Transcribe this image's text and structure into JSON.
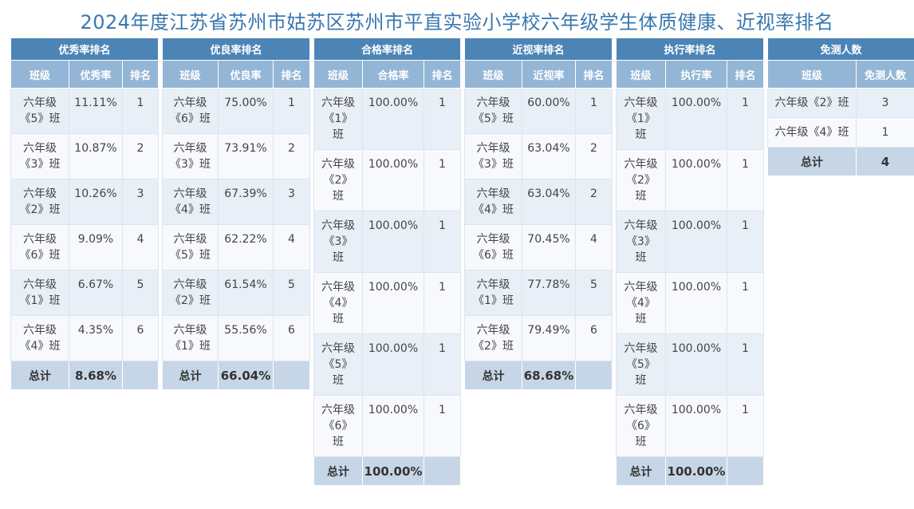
{
  "title": "2024年度江苏省苏州市姑苏区苏州市平直实验小学校六年级学生体质健康、近视率排名",
  "tables": [
    {
      "title": "优秀率排名",
      "headers": [
        "班级",
        "优秀率",
        "排名"
      ],
      "rows": [
        {
          "class": "六年级\n《5》班",
          "value": "11.11%",
          "rank": "1"
        },
        {
          "class": "六年级\n《3》班",
          "value": "10.87%",
          "rank": "2"
        },
        {
          "class": "六年级\n《2》班",
          "value": "10.26%",
          "rank": "3"
        },
        {
          "class": "六年级\n《6》班",
          "value": "9.09%",
          "rank": "4"
        },
        {
          "class": "六年级\n《1》班",
          "value": "6.67%",
          "rank": "5"
        },
        {
          "class": "六年级\n《4》班",
          "value": "4.35%",
          "rank": "6"
        }
      ],
      "total_label": "总计",
      "total_value": "8.68%"
    },
    {
      "title": "优良率排名",
      "headers": [
        "班级",
        "优良率",
        "排名"
      ],
      "rows": [
        {
          "class": "六年级\n《6》班",
          "value": "75.00%",
          "rank": "1"
        },
        {
          "class": "六年级\n《3》班",
          "value": "73.91%",
          "rank": "2"
        },
        {
          "class": "六年级\n《4》班",
          "value": "67.39%",
          "rank": "3"
        },
        {
          "class": "六年级\n《5》班",
          "value": "62.22%",
          "rank": "4"
        },
        {
          "class": "六年级\n《2》班",
          "value": "61.54%",
          "rank": "5"
        },
        {
          "class": "六年级\n《1》班",
          "value": "55.56%",
          "rank": "6"
        }
      ],
      "total_label": "总计",
      "total_value": "66.04%"
    },
    {
      "title": "合格率排名",
      "headers": [
        "班级",
        "合格率",
        "排名"
      ],
      "rows": [
        {
          "class": "六年级\n《1》\n班",
          "value": "100.00%",
          "rank": "1"
        },
        {
          "class": "六年级\n《2》\n班",
          "value": "100.00%",
          "rank": "1"
        },
        {
          "class": "六年级\n《3》\n班",
          "value": "100.00%",
          "rank": "1"
        },
        {
          "class": "六年级\n《4》\n班",
          "value": "100.00%",
          "rank": "1"
        },
        {
          "class": "六年级\n《5》\n班",
          "value": "100.00%",
          "rank": "1"
        },
        {
          "class": "六年级\n《6》\n班",
          "value": "100.00%",
          "rank": "1"
        }
      ],
      "total_label": "总计",
      "total_value": "100.00%"
    },
    {
      "title": "近视率排名",
      "headers": [
        "班级",
        "近视率",
        "排名"
      ],
      "rows": [
        {
          "class": "六年级\n《5》班",
          "value": "60.00%",
          "rank": "1"
        },
        {
          "class": "六年级\n《3》班",
          "value": "63.04%",
          "rank": "2"
        },
        {
          "class": "六年级\n《4》班",
          "value": "63.04%",
          "rank": "2"
        },
        {
          "class": "六年级\n《6》班",
          "value": "70.45%",
          "rank": "4"
        },
        {
          "class": "六年级\n《1》班",
          "value": "77.78%",
          "rank": "5"
        },
        {
          "class": "六年级\n《2》班",
          "value": "79.49%",
          "rank": "6"
        }
      ],
      "total_label": "总计",
      "total_value": "68.68%"
    },
    {
      "title": "执行率排名",
      "headers": [
        "班级",
        "执行率",
        "排名"
      ],
      "rows": [
        {
          "class": "六年级\n《1》\n班",
          "value": "100.00%",
          "rank": "1"
        },
        {
          "class": "六年级\n《2》\n班",
          "value": "100.00%",
          "rank": "1"
        },
        {
          "class": "六年级\n《3》\n班",
          "value": "100.00%",
          "rank": "1"
        },
        {
          "class": "六年级\n《4》\n班",
          "value": "100.00%",
          "rank": "1"
        },
        {
          "class": "六年级\n《5》\n班",
          "value": "100.00%",
          "rank": "1"
        },
        {
          "class": "六年级\n《6》\n班",
          "value": "100.00%",
          "rank": "1"
        }
      ],
      "total_label": "总计",
      "total_value": "100.00%"
    }
  ],
  "exempt": {
    "title": "免测人数",
    "headers": [
      "班级",
      "免测人数"
    ],
    "rows": [
      {
        "class": "六年级《2》班",
        "count": "3"
      },
      {
        "class": "六年级《4》班",
        "count": "1"
      }
    ],
    "total_label": "总计",
    "total_value": "4"
  }
}
